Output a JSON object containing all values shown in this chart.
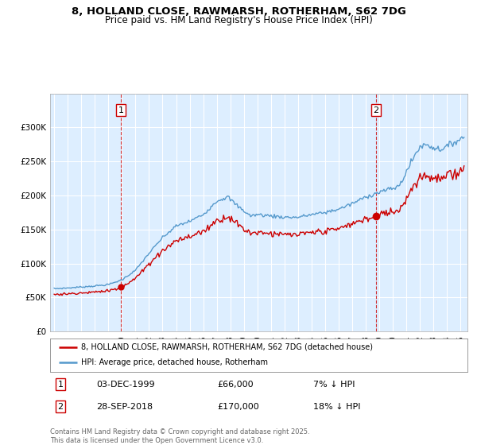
{
  "title_line1": "8, HOLLAND CLOSE, RAWMARSH, ROTHERHAM, S62 7DG",
  "title_line2": "Price paid vs. HM Land Registry's House Price Index (HPI)",
  "background_color": "#ffffff",
  "plot_bg_color": "#ddeeff",
  "grid_color": "#ffffff",
  "hpi_color": "#5599cc",
  "property_color": "#cc0000",
  "sale1_x": 1999.92,
  "sale2_x": 2018.75,
  "sale1_price": 66000,
  "sale2_price": 170000,
  "annotation1": "1",
  "annotation2": "2",
  "legend_property": "8, HOLLAND CLOSE, RAWMARSH, ROTHERHAM, S62 7DG (detached house)",
  "legend_hpi": "HPI: Average price, detached house, Rotherham",
  "note1_label": "1",
  "note1_date": "03-DEC-1999",
  "note1_price": "£66,000",
  "note1_pct": "7% ↓ HPI",
  "note2_label": "2",
  "note2_date": "28-SEP-2018",
  "note2_price": "£170,000",
  "note2_pct": "18% ↓ HPI",
  "footer": "Contains HM Land Registry data © Crown copyright and database right 2025.\nThis data is licensed under the Open Government Licence v3.0.",
  "ylim_min": 0,
  "ylim_max": 350000,
  "yticks": [
    0,
    50000,
    100000,
    150000,
    200000,
    250000,
    300000
  ],
  "ytick_labels": [
    "£0",
    "£50K",
    "£100K",
    "£150K",
    "£200K",
    "£250K",
    "£300K"
  ],
  "xlim_min": 1994.7,
  "xlim_max": 2025.5
}
